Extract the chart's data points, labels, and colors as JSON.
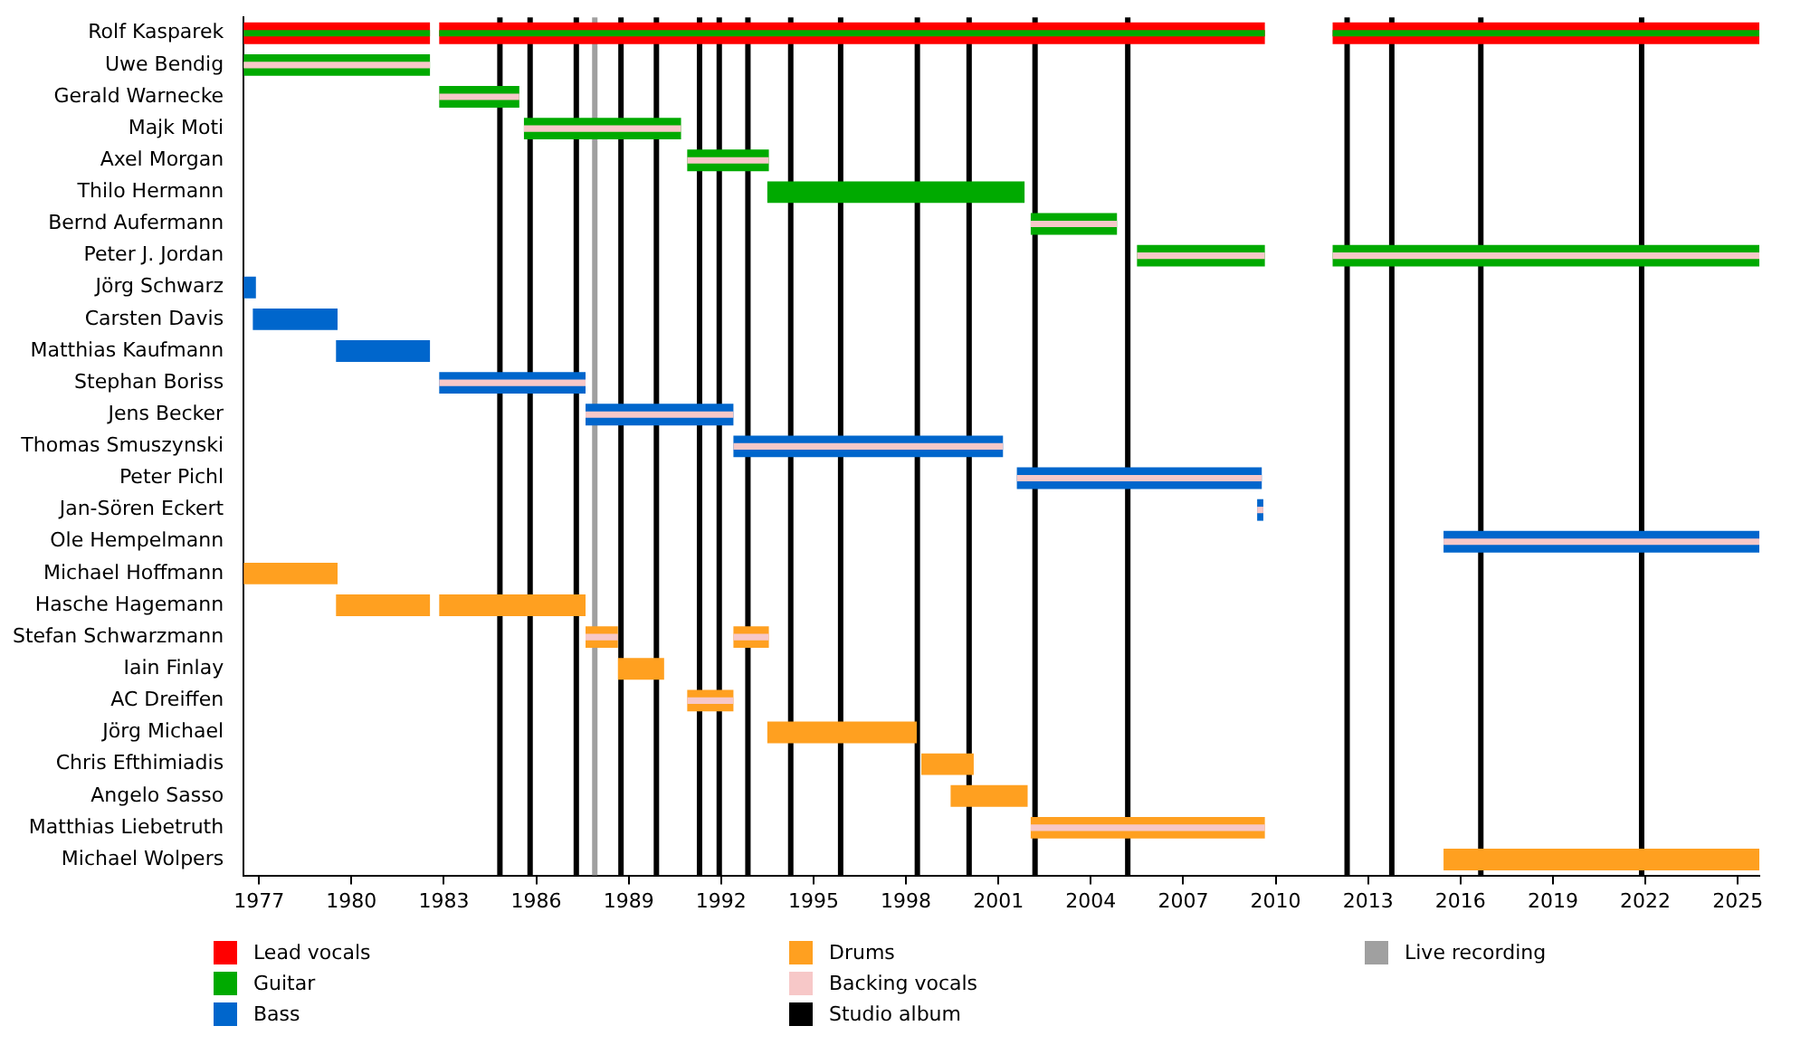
{
  "chart_data": {
    "type": "bar",
    "orientation": "horizontal",
    "legend": "bottom",
    "grid": false,
    "categories": [
      "Rolf Kasparek",
      "Uwe Bendig",
      "Gerald Warnecke",
      "Majk Moti",
      "Axel Morgan",
      "Thilo Hermann",
      "Bernd Aufermann",
      "Peter J. Jordan",
      "Jörg Schwarz",
      "Carsten Davis",
      "Matthias Kaufmann",
      "Stephan Boriss",
      "Jens Becker",
      "Thomas Smuszynski",
      "Peter Pichl",
      "Jan-Sören Eckert",
      "Ole Hempelmann",
      "Michael Hoffmann",
      "Hasche Hagemann",
      "Stefan Schwarzmann",
      "Iain Finlay",
      "AC Dreiffen",
      "Jörg Michael",
      "Chris Efthimiadis",
      "Angelo Sasso",
      "Matthias Liebetruth",
      "Michael Wolpers"
    ],
    "xlim": [
      1976.5,
      2025.7
    ],
    "xticks": [
      1977,
      1980,
      1983,
      1986,
      1989,
      1992,
      1995,
      1998,
      2001,
      2004,
      2007,
      2010,
      2013,
      2016,
      2019,
      2022,
      2025
    ],
    "series": [
      {
        "name": "Lead vocals",
        "color": "#ff0000",
        "base": [
          1976.5,
          null,
          null,
          null,
          null,
          null,
          null,
          null,
          null,
          null,
          null,
          null,
          null,
          null,
          null,
          null,
          null,
          null,
          null,
          null,
          null,
          null,
          null,
          null,
          null,
          null,
          null
        ],
        "values": [
          6.05,
          null,
          null,
          null,
          null,
          null,
          null,
          null,
          null,
          null,
          null,
          null,
          null,
          null,
          null,
          null,
          null,
          null,
          null,
          null,
          null,
          null,
          null,
          null,
          null,
          null,
          null
        ]
      },
      {
        "color": "#ff0000",
        "base": [
          1982.85,
          null,
          null,
          null,
          null,
          null,
          null,
          null,
          null,
          null,
          null,
          null,
          null,
          null,
          null,
          null,
          null,
          null,
          null,
          null,
          null,
          null,
          null,
          null,
          null,
          null,
          null
        ],
        "values": [
          26.8,
          null,
          null,
          null,
          null,
          null,
          null,
          null,
          null,
          null,
          null,
          null,
          null,
          null,
          null,
          null,
          null,
          null,
          null,
          null,
          null,
          null,
          null,
          null,
          null,
          null,
          null
        ]
      },
      {
        "color": "#ff0000",
        "base": [
          2011.85,
          null,
          null,
          null,
          null,
          null,
          null,
          null,
          null,
          null,
          null,
          null,
          null,
          null,
          null,
          null,
          null,
          null,
          null,
          null,
          null,
          null,
          null,
          null,
          null,
          null,
          null
        ],
        "values": [
          13.85,
          null,
          null,
          null,
          null,
          null,
          null,
          null,
          null,
          null,
          null,
          null,
          null,
          null,
          null,
          null,
          null,
          null,
          null,
          null,
          null,
          null,
          null,
          null,
          null,
          null,
          null
        ]
      },
      {
        "name": "Guitar",
        "color": "#00aa00",
        "base": [
          null,
          1976.5,
          1982.85,
          1985.6,
          1990.9,
          1993.5,
          2002.05,
          2005.5,
          null,
          null,
          null,
          null,
          null,
          null,
          null,
          null,
          null,
          null,
          null,
          null,
          null,
          null,
          null,
          null,
          null,
          null,
          null
        ],
        "values": [
          null,
          6.05,
          2.6,
          5.1,
          2.65,
          8.35,
          2.8,
          4.15,
          null,
          null,
          null,
          null,
          null,
          null,
          null,
          null,
          null,
          null,
          null,
          null,
          null,
          null,
          null,
          null,
          null,
          null,
          null
        ]
      },
      {
        "color": "#00aa00",
        "base": [
          null,
          null,
          null,
          null,
          null,
          null,
          null,
          2011.85,
          null,
          null,
          null,
          null,
          null,
          null,
          null,
          null,
          null,
          null,
          null,
          null,
          null,
          null,
          null,
          null,
          null,
          null,
          null
        ],
        "values": [
          null,
          null,
          null,
          null,
          null,
          null,
          null,
          13.85,
          null,
          null,
          null,
          null,
          null,
          null,
          null,
          null,
          null,
          null,
          null,
          null,
          null,
          null,
          null,
          null,
          null,
          null,
          null
        ]
      },
      {
        "color": "#00aa00",
        "base": [
          1976.5,
          null,
          null,
          null,
          null,
          null,
          null,
          null,
          null,
          null,
          null,
          null,
          null,
          null,
          null,
          null,
          null,
          null,
          null,
          null,
          null,
          null,
          null,
          null,
          null,
          null,
          null
        ],
        "values": [
          6.05,
          null,
          null,
          null,
          null,
          null,
          null,
          null,
          null,
          null,
          null,
          null,
          null,
          null,
          null,
          null,
          null,
          null,
          null,
          null,
          null,
          null,
          null,
          null,
          null,
          null,
          null
        ]
      },
      {
        "color": "#00aa00",
        "base": [
          1982.85,
          null,
          null,
          null,
          null,
          null,
          null,
          null,
          null,
          null,
          null,
          null,
          null,
          null,
          null,
          null,
          null,
          null,
          null,
          null,
          null,
          null,
          null,
          null,
          null,
          null,
          null
        ],
        "values": [
          26.8,
          null,
          null,
          null,
          null,
          null,
          null,
          null,
          null,
          null,
          null,
          null,
          null,
          null,
          null,
          null,
          null,
          null,
          null,
          null,
          null,
          null,
          null,
          null,
          null,
          null,
          null
        ]
      },
      {
        "color": "#00aa00",
        "base": [
          2011.85,
          null,
          null,
          null,
          null,
          null,
          null,
          null,
          null,
          null,
          null,
          null,
          null,
          null,
          null,
          null,
          null,
          null,
          null,
          null,
          null,
          null,
          null,
          null,
          null,
          null,
          null
        ],
        "values": [
          13.85,
          null,
          null,
          null,
          null,
          null,
          null,
          null,
          null,
          null,
          null,
          null,
          null,
          null,
          null,
          null,
          null,
          null,
          null,
          null,
          null,
          null,
          null,
          null,
          null,
          null,
          null
        ]
      },
      {
        "name": "Bass",
        "color": "#0066cc",
        "base": [
          null,
          null,
          null,
          null,
          null,
          null,
          null,
          null,
          1976.5,
          1976.8,
          1979.5,
          1982.85,
          1987.6,
          1992.4,
          2001.6,
          2009.4,
          2015.45,
          null,
          null,
          null,
          null,
          null,
          null,
          null,
          null,
          null,
          null
        ],
        "values": [
          null,
          null,
          null,
          null,
          null,
          null,
          null,
          null,
          0.4,
          2.75,
          3.05,
          4.75,
          4.8,
          8.75,
          7.95,
          0.2,
          10.25,
          null,
          null,
          null,
          null,
          null,
          null,
          null,
          null,
          null,
          null
        ]
      },
      {
        "name": "Drums",
        "color": "#ffa020",
        "base": [
          null,
          null,
          null,
          null,
          null,
          null,
          null,
          null,
          null,
          null,
          null,
          null,
          null,
          null,
          null,
          null,
          null,
          1976.5,
          1979.5,
          1987.6,
          1988.65,
          1990.9,
          1993.5,
          1998.5,
          1999.45,
          2002.05,
          2015.45
        ],
        "values": [
          null,
          null,
          null,
          null,
          null,
          null,
          null,
          null,
          null,
          null,
          null,
          null,
          null,
          null,
          null,
          null,
          null,
          3.05,
          3.05,
          1.05,
          1.5,
          1.5,
          4.85,
          1.7,
          2.5,
          7.6,
          10.25
        ]
      },
      {
        "color": "#ffa020",
        "base": [
          null,
          null,
          null,
          null,
          null,
          null,
          null,
          null,
          null,
          null,
          null,
          null,
          null,
          null,
          null,
          null,
          null,
          null,
          1982.85,
          1992.4,
          null,
          null,
          null,
          null,
          null,
          null,
          null
        ],
        "values": [
          null,
          null,
          null,
          null,
          null,
          null,
          null,
          null,
          null,
          null,
          null,
          null,
          null,
          null,
          null,
          null,
          null,
          null,
          4.75,
          1.15,
          null,
          null,
          null,
          null,
          null,
          null,
          null
        ]
      },
      {
        "name": "Backing vocals",
        "color": "#f7c8c8",
        "base": [
          null,
          1976.5,
          1982.85,
          1985.6,
          1990.9,
          null,
          2002.05,
          2005.5,
          null,
          null,
          null,
          1982.85,
          1987.6,
          1992.4,
          2001.6,
          2009.4,
          2015.45,
          null,
          null,
          1987.6,
          null,
          1990.9,
          null,
          null,
          null,
          2002.05,
          null
        ],
        "values": [
          null,
          6.05,
          2.6,
          5.1,
          2.65,
          null,
          2.8,
          4.15,
          null,
          null,
          null,
          4.75,
          4.8,
          8.75,
          7.95,
          0.2,
          10.25,
          null,
          null,
          1.05,
          null,
          1.5,
          null,
          null,
          null,
          7.6,
          null
        ]
      },
      {
        "color": "#f7c8c8",
        "base": [
          null,
          null,
          null,
          null,
          null,
          null,
          null,
          2011.85,
          null,
          null,
          null,
          null,
          null,
          null,
          null,
          null,
          null,
          null,
          null,
          1992.4,
          null,
          null,
          null,
          null,
          null,
          null,
          null
        ],
        "values": [
          null,
          null,
          null,
          null,
          null,
          null,
          null,
          13.85,
          null,
          null,
          null,
          null,
          null,
          null,
          null,
          null,
          null,
          null,
          null,
          1.15,
          null,
          null,
          null,
          null,
          null,
          null,
          null
        ]
      }
    ],
    "ref_lines": [
      {
        "axis": "x",
        "value": 1984.82,
        "label": "Studio album",
        "color": "#000000"
      },
      {
        "axis": "x",
        "value": 1985.8,
        "color": "#000000"
      },
      {
        "axis": "x",
        "value": 1987.3,
        "color": "#000000"
      },
      {
        "axis": "x",
        "value": 1987.9,
        "label": "Live recording",
        "color": "#a0a0a0"
      },
      {
        "axis": "x",
        "value": 1988.75,
        "color": "#000000"
      },
      {
        "axis": "x",
        "value": 1989.9,
        "color": "#000000"
      },
      {
        "axis": "x",
        "value": 1991.3,
        "color": "#000000"
      },
      {
        "axis": "x",
        "value": 1991.94,
        "color": "#000000"
      },
      {
        "axis": "x",
        "value": 1992.87,
        "color": "#000000"
      },
      {
        "axis": "x",
        "value": 1994.26,
        "color": "#000000"
      },
      {
        "axis": "x",
        "value": 1995.88,
        "color": "#000000"
      },
      {
        "axis": "x",
        "value": 1998.37,
        "color": "#000000"
      },
      {
        "axis": "x",
        "value": 2000.05,
        "color": "#000000"
      },
      {
        "axis": "x",
        "value": 2002.19,
        "color": "#000000"
      },
      {
        "axis": "x",
        "value": 2005.2,
        "color": "#000000"
      },
      {
        "axis": "x",
        "value": 2012.32,
        "color": "#000000"
      },
      {
        "axis": "x",
        "value": 2013.77,
        "color": "#000000"
      },
      {
        "axis": "x",
        "value": 2016.66,
        "color": "#000000"
      },
      {
        "axis": "x",
        "value": 2021.88,
        "color": "#000000"
      }
    ]
  }
}
